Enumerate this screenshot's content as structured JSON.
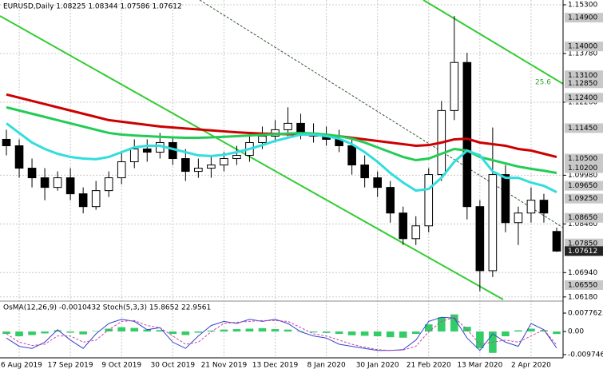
{
  "chart_data": {
    "type": "candlestick",
    "title": "EURUSD,Daily  1.08225 1.08344 1.07586 1.07612",
    "annotation": "25.6",
    "current_price": 1.07612,
    "ylim": [
      1.061,
      1.1545
    ],
    "yticks": [
      {
        "value": 1.153,
        "label": "1.15300"
      },
      {
        "value": 1.1378,
        "label": "1.13780"
      },
      {
        "value": 1.1226,
        "label": "1.12260"
      },
      {
        "value": 1.0998,
        "label": "1.09980"
      },
      {
        "value": 1.0846,
        "label": "1.08460"
      },
      {
        "value": 1.0694,
        "label": "1.06940"
      },
      {
        "value": 1.0618,
        "label": "1.06180"
      }
    ],
    "levels": [
      {
        "value": 1.149,
        "label": "1.14900"
      },
      {
        "value": 1.14,
        "label": "1.14000"
      },
      {
        "value": 1.131,
        "label": "1.13100"
      },
      {
        "value": 1.1285,
        "label": "1.12850"
      },
      {
        "value": 1.124,
        "label": "1.12400"
      },
      {
        "value": 1.1145,
        "label": "1.11450"
      },
      {
        "value": 1.105,
        "label": "1.10500"
      },
      {
        "value": 1.102,
        "label": "1.10200"
      },
      {
        "value": 1.0965,
        "label": "1.09650"
      },
      {
        "value": 1.0925,
        "label": "1.09250"
      },
      {
        "value": 1.0865,
        "label": "1.08650"
      },
      {
        "value": 1.0785,
        "label": "1.07850"
      },
      {
        "value": 1.0655,
        "label": "1.06550"
      }
    ],
    "dates": [
      null,
      "26 Aug 2019",
      null,
      null,
      null,
      "17 Sep 2019",
      null,
      null,
      null,
      "9 Oct 2019",
      null,
      null,
      null,
      "30 Oct 2019",
      null,
      null,
      null,
      "21 Nov 2019",
      null,
      null,
      null,
      "13 Dec 2019",
      null,
      null,
      null,
      "8 Jan 2020",
      null,
      null,
      null,
      "30 Jan 2020",
      null,
      null,
      null,
      "21 Feb 2020",
      null,
      null,
      null,
      "13 Mar 2020",
      null,
      null,
      null,
      "2 Apr 2020",
      null,
      null
    ],
    "open": [
      1.111,
      1.109,
      1.102,
      1.099,
      1.096,
      1.099,
      1.094,
      1.09,
      1.095,
      1.099,
      1.104,
      1.108,
      1.107,
      1.11,
      1.105,
      1.101,
      1.102,
      1.103,
      1.105,
      1.106,
      1.11,
      1.112,
      1.114,
      1.116,
      1.113,
      1.112,
      1.111,
      1.109,
      1.103,
      1.099,
      1.096,
      1.088,
      1.08,
      1.084,
      1.1,
      1.12,
      1.135,
      1.09,
      1.07,
      1.1,
      1.085,
      1.088,
      1.092,
      1.08225
    ],
    "high": [
      1.114,
      1.111,
      1.105,
      1.102,
      1.101,
      1.102,
      1.096,
      1.098,
      1.101,
      1.107,
      1.111,
      1.111,
      1.113,
      1.112,
      1.108,
      1.105,
      1.106,
      1.107,
      1.109,
      1.113,
      1.115,
      1.117,
      1.121,
      1.119,
      1.116,
      1.115,
      1.114,
      1.111,
      1.106,
      1.101,
      1.098,
      1.09,
      1.087,
      1.102,
      1.123,
      1.1495,
      1.138,
      1.092,
      1.1147,
      1.103,
      1.09,
      1.096,
      1.094,
      1.08344
    ],
    "low": [
      1.106,
      1.099,
      1.096,
      1.092,
      1.095,
      1.092,
      1.0879,
      1.089,
      1.093,
      1.097,
      1.102,
      1.104,
      1.105,
      1.103,
      1.098,
      1.099,
      1.099,
      1.101,
      1.103,
      1.104,
      1.108,
      1.11,
      1.112,
      1.111,
      1.11,
      1.109,
      1.107,
      1.1,
      1.096,
      1.093,
      1.085,
      1.078,
      1.078,
      1.082,
      1.098,
      1.117,
      1.086,
      1.0636,
      1.068,
      1.082,
      1.078,
      1.085,
      1.085,
      1.07586
    ],
    "close": [
      1.109,
      1.102,
      1.099,
      1.096,
      1.099,
      1.094,
      1.09,
      1.095,
      1.099,
      1.104,
      1.108,
      1.107,
      1.11,
      1.105,
      1.101,
      1.102,
      1.103,
      1.105,
      1.106,
      1.11,
      1.112,
      1.114,
      1.116,
      1.113,
      1.112,
      1.111,
      1.109,
      1.103,
      1.099,
      1.096,
      1.088,
      1.08,
      1.084,
      1.1,
      1.12,
      1.135,
      1.09,
      1.07,
      1.1,
      1.085,
      1.088,
      1.092,
      1.088,
      1.07612
    ],
    "series": [
      {
        "color": "#cc0000",
        "values": [
          1.125,
          1.124,
          1.123,
          1.122,
          1.121,
          1.12,
          1.119,
          1.118,
          1.117,
          1.1165,
          1.116,
          1.1155,
          1.115,
          1.1147,
          1.1144,
          1.1141,
          1.1138,
          1.1135,
          1.1132,
          1.113,
          1.1128,
          1.1127,
          1.1126,
          1.1125,
          1.1124,
          1.1122,
          1.112,
          1.1115,
          1.111,
          1.1105,
          1.11,
          1.1095,
          1.109,
          1.1092,
          1.11,
          1.111,
          1.1112,
          1.11,
          1.1095,
          1.109,
          1.108,
          1.1075,
          1.1065,
          1.1055
        ]
      },
      {
        "color": "#22cc55",
        "values": [
          1.121,
          1.12,
          1.119,
          1.118,
          1.117,
          1.116,
          1.115,
          1.114,
          1.113,
          1.1125,
          1.1122,
          1.112,
          1.1118,
          1.1116,
          1.1115,
          1.1115,
          1.1116,
          1.1118,
          1.112,
          1.1122,
          1.1124,
          1.1126,
          1.1128,
          1.113,
          1.1128,
          1.1125,
          1.112,
          1.1112,
          1.11,
          1.1085,
          1.107,
          1.1055,
          1.1045,
          1.105,
          1.1065,
          1.108,
          1.1075,
          1.1055,
          1.1045,
          1.1035,
          1.1025,
          1.1018,
          1.1012,
          1.1005
        ]
      },
      {
        "color": "#33dddd",
        "values": [
          1.116,
          1.113,
          1.11,
          1.108,
          1.1065,
          1.1055,
          1.105,
          1.1048,
          1.1055,
          1.107,
          1.1085,
          1.109,
          1.109,
          1.108,
          1.107,
          1.106,
          1.1058,
          1.1062,
          1.107,
          1.108,
          1.1092,
          1.1105,
          1.1115,
          1.1125,
          1.1125,
          1.112,
          1.1112,
          1.1095,
          1.107,
          1.104,
          1.1005,
          1.0975,
          1.095,
          1.0955,
          1.099,
          1.104,
          1.1075,
          1.106,
          1.101,
          1.099,
          1.099,
          1.0975,
          1.0965,
          1.0945
        ]
      }
    ],
    "oscillator": {
      "title": "OsMA(12,26,9) -0.0010432  Stoch(5,3,3) 15.8652 22.9561",
      "ylim": [
        -0.009746,
        0.0077625
      ],
      "yticks": [
        {
          "value": 0.0077625,
          "label": "0.0077625"
        },
        {
          "value": 0,
          "label": "0.00"
        },
        {
          "value": -0.009746,
          "label": "-0.009746"
        }
      ],
      "osma_color": "#33cc66",
      "osma": [
        -0.001,
        -0.002,
        -0.0015,
        -0.0008,
        0.0005,
        -0.0005,
        -0.0012,
        0.0002,
        0.0012,
        0.0018,
        0.0015,
        0.0008,
        0.0006,
        -0.001,
        -0.0015,
        -0.0005,
        0.0004,
        0.0008,
        0.001,
        0.0012,
        0.0014,
        0.001,
        0.0008,
        0.0002,
        -0.0004,
        -0.0006,
        -0.001,
        -0.0016,
        -0.0018,
        -0.002,
        -0.0024,
        -0.0026,
        -0.001,
        0.003,
        0.006,
        0.0072,
        0.002,
        -0.007,
        -0.009,
        -0.002,
        0.0005,
        0.0012,
        0.0006,
        -0.0010432
      ],
      "stoch_lim": [
        0,
        100
      ],
      "stoch_main_color": "#3344cc",
      "stoch_main": [
        40,
        20,
        15,
        30,
        60,
        35,
        15,
        50,
        75,
        85,
        80,
        60,
        65,
        30,
        15,
        45,
        70,
        80,
        75,
        85,
        80,
        85,
        75,
        55,
        45,
        40,
        25,
        20,
        15,
        10,
        10,
        12,
        35,
        80,
        90,
        88,
        40,
        10,
        50,
        30,
        20,
        75,
        60,
        15.8652
      ],
      "stoch_signal_color": "#cc44aa",
      "stoch_signal": [
        50,
        30,
        22,
        25,
        45,
        45,
        30,
        35,
        60,
        80,
        82,
        70,
        65,
        45,
        25,
        30,
        55,
        75,
        78,
        80,
        82,
        82,
        80,
        65,
        50,
        45,
        35,
        25,
        18,
        12,
        10,
        11,
        20,
        55,
        80,
        90,
        60,
        25,
        30,
        35,
        30,
        45,
        60,
        22.9561
      ]
    }
  }
}
